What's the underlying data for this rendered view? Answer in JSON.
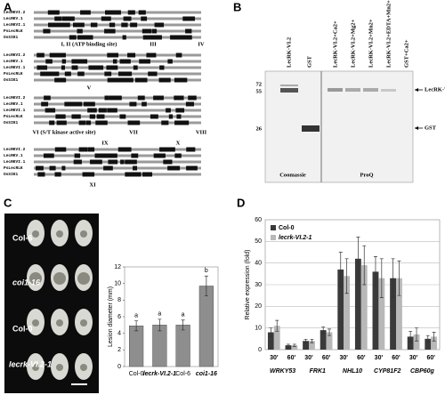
{
  "panel_labels": [
    "A",
    "B",
    "C",
    "D"
  ],
  "alignment": {
    "sequences": [
      "LecRKVI.2",
      "LecRKV.1",
      "LecRKVI.1",
      "PsLecRLK",
      "OsSIK1"
    ],
    "domains": [
      "I, II (ATP binding site)",
      "III",
      "IV",
      "V",
      "VI (S/T kinase active site)",
      "VII",
      "VIII",
      "IX",
      "X",
      "XI"
    ]
  },
  "gel": {
    "lanes": [
      "LecRK-VI.2",
      "GST",
      "LecRK-VI.2+Ca2+",
      "LecRK-VI.2+Mg2+",
      "LecRK-VI.2+Mn2+",
      "LecRK-VI.2+EDTA+Mn2+",
      "GST+Ca2+"
    ],
    "markers": [
      "72",
      "55",
      "26"
    ],
    "bands": [
      "LecRK-VI.2",
      "GST"
    ],
    "stains": [
      "Coomassie",
      "ProQ"
    ]
  },
  "photos": {
    "labels": [
      "Col-6",
      "coi1-16",
      "Col-0",
      "lecrk-VI.2-1"
    ]
  },
  "chart_data": [
    {
      "type": "bar",
      "y_label": "Lesion diameter (mm)",
      "categories": [
        "Col-0",
        "lecrk-VI.2-1",
        "Col-6",
        "coi1-16"
      ],
      "values": [
        4.9,
        5.0,
        5.0,
        9.7
      ],
      "errors": [
        0.6,
        0.7,
        0.6,
        1.2
      ],
      "annotations": [
        "a",
        "a",
        "a",
        "b"
      ],
      "color": "#8e8e8e",
      "ylim": [
        0,
        12
      ],
      "yticks": [
        0,
        2,
        4,
        6,
        8,
        10,
        12
      ],
      "grid": false
    },
    {
      "type": "grouped_bar",
      "y_label": "Relative expression (fold)",
      "categories": [
        "30'",
        "60'",
        "30'",
        "60'",
        "30'",
        "60'",
        "30'",
        "60'",
        "30'",
        "60'"
      ],
      "groups": [
        "WRKY53",
        "FRK1",
        "NHL10",
        "CYP81F2",
        "CBP60g"
      ],
      "series": [
        {
          "name": "Col-0",
          "color": "#3a3a3a",
          "values": [
            8,
            2,
            4,
            9,
            37,
            42,
            36,
            33,
            6,
            5
          ],
          "errors": [
            2,
            0.5,
            0.8,
            1.5,
            8,
            10,
            7,
            9,
            2.5,
            1.5
          ]
        },
        {
          "name": "lecrk-VI.2-1",
          "color": "#b8b8b8",
          "values": [
            11,
            2,
            4,
            8,
            34,
            39,
            33,
            33,
            7,
            6
          ],
          "errors": [
            2.5,
            0.5,
            0.8,
            1.5,
            8,
            9,
            9,
            8,
            3,
            2
          ]
        }
      ],
      "ylim": [
        0,
        60
      ],
      "yticks": [
        0,
        10,
        20,
        30,
        40,
        50,
        60
      ],
      "grid": true,
      "legend": "top-left"
    }
  ]
}
